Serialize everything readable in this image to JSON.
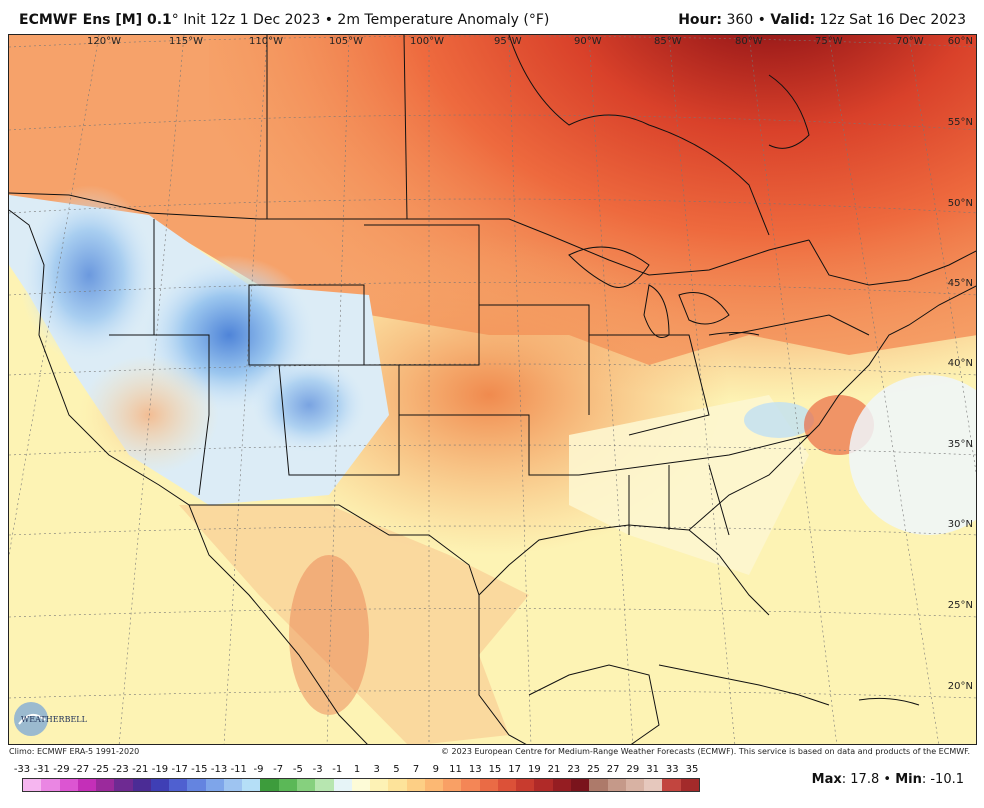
{
  "header": {
    "model": "ECMWF Ens [M] 0.1",
    "degree": "°",
    "init": "Init 12z 1 Dec 2023",
    "bullet": "•",
    "field": "2m Temperature Anomaly (°F)",
    "hour_label": "Hour:",
    "hour_value": "360",
    "valid_label": "Valid:",
    "valid_value": "12z Sat 16 Dec 2023"
  },
  "map": {
    "longitude_labels": [
      "120°W",
      "115°W",
      "110°W",
      "105°W",
      "100°W",
      "95°W",
      "90°W",
      "85°W",
      "80°W",
      "75°W",
      "70°W"
    ],
    "latitude_labels": [
      "60°N",
      "55°N",
      "50°N",
      "45°N",
      "40°N",
      "35°N",
      "30°N",
      "25°N",
      "20°N"
    ],
    "logo_text": "WEATHERBELL"
  },
  "footer": {
    "climo": "Climo: ECMWF ERA-5 1991-2020",
    "copyright": "© 2023 European Centre for Medium-Range Weather Forecasts (ECMWF). This service is based on data and products of the ECMWF."
  },
  "scale": {
    "labels": [
      "-33",
      "-31",
      "-29",
      "-27",
      "-25",
      "-23",
      "-21",
      "-19",
      "-17",
      "-15",
      "-13",
      "-11",
      "-9",
      "-7",
      "-5",
      "-3",
      "-1",
      "1",
      "3",
      "5",
      "7",
      "9",
      "11",
      "13",
      "15",
      "17",
      "19",
      "21",
      "23",
      "25",
      "27",
      "29",
      "31",
      "33",
      "35"
    ],
    "colors": [
      "#f6b6f0",
      "#ea86e3",
      "#dc55d2",
      "#c42fb8",
      "#9b2a9c",
      "#6e2a92",
      "#4b2c95",
      "#3f3fb5",
      "#4f60d0",
      "#6484e0",
      "#7ea5ea",
      "#9ec4f1",
      "#b5dff7",
      "#3d9c3c",
      "#5bb857",
      "#86d07e",
      "#b7e6b0",
      "#e6f4f7",
      "#fdfbd7",
      "#fdf2b5",
      "#fde39a",
      "#fdcf85",
      "#fcb873",
      "#f9a065",
      "#f48656",
      "#ea6b45",
      "#dc5138",
      "#c83b2e",
      "#b02a28",
      "#951d22",
      "#7a141c",
      "#ad7a6a",
      "#c59989",
      "#d8b2a3",
      "#e6c8bd",
      "#c2453f",
      "#a32a2a"
    ]
  },
  "stats": {
    "max_label": "Max",
    "max_value": "17.8",
    "min_label": "Min",
    "min_value": "-10.1"
  }
}
